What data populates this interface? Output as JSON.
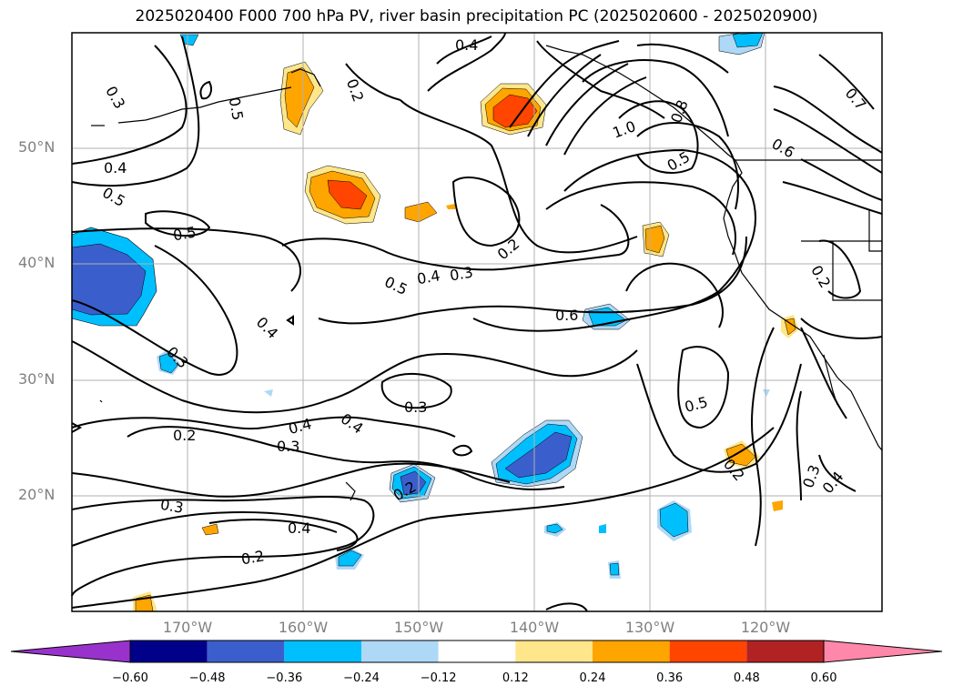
{
  "title": "2025020400 F000 700 hPa PV, river basin precipitation PC (2025020600 - 2025020900)",
  "lat_labels": [
    "50°N",
    "40°N",
    "30°N",
    "20°N"
  ],
  "lon_labels": [
    "170°W",
    "160°W",
    "150°W",
    "140°W",
    "130°W",
    "120°W"
  ],
  "colorbar": {
    "ticks": [
      "−0.60",
      "−0.48",
      "−0.36",
      "−0.24",
      "−0.12",
      "0.12",
      "0.24",
      "0.36",
      "0.48",
      "0.60"
    ],
    "colors": [
      "#9932cc",
      "#00008b",
      "#3a5fcd",
      "#00bfff",
      "#add8f6",
      "#ffffff",
      "#ffe68a",
      "#ffa500",
      "#ff4500",
      "#b22222",
      "#ff88aa"
    ]
  },
  "contour_labels": [
    "0.4",
    "0.3",
    "0.5",
    "0.2",
    "1.0",
    "0.8",
    "0.7",
    "0.6",
    "0.5",
    "0.4",
    "0.5",
    "0.5",
    "0.2",
    "0.3",
    "0.4",
    "0.5",
    "0.2",
    "0.6",
    "0.4",
    "0.3",
    "0.3",
    "0.5",
    "0.2",
    "0.3",
    "0.4",
    "0.4",
    "0.2",
    "0.2",
    "0.3",
    "0.4",
    "0.3",
    "0.4",
    "0.2",
    "0.3",
    "0.4",
    "0.7",
    "0.8",
    "0.5"
  ]
}
